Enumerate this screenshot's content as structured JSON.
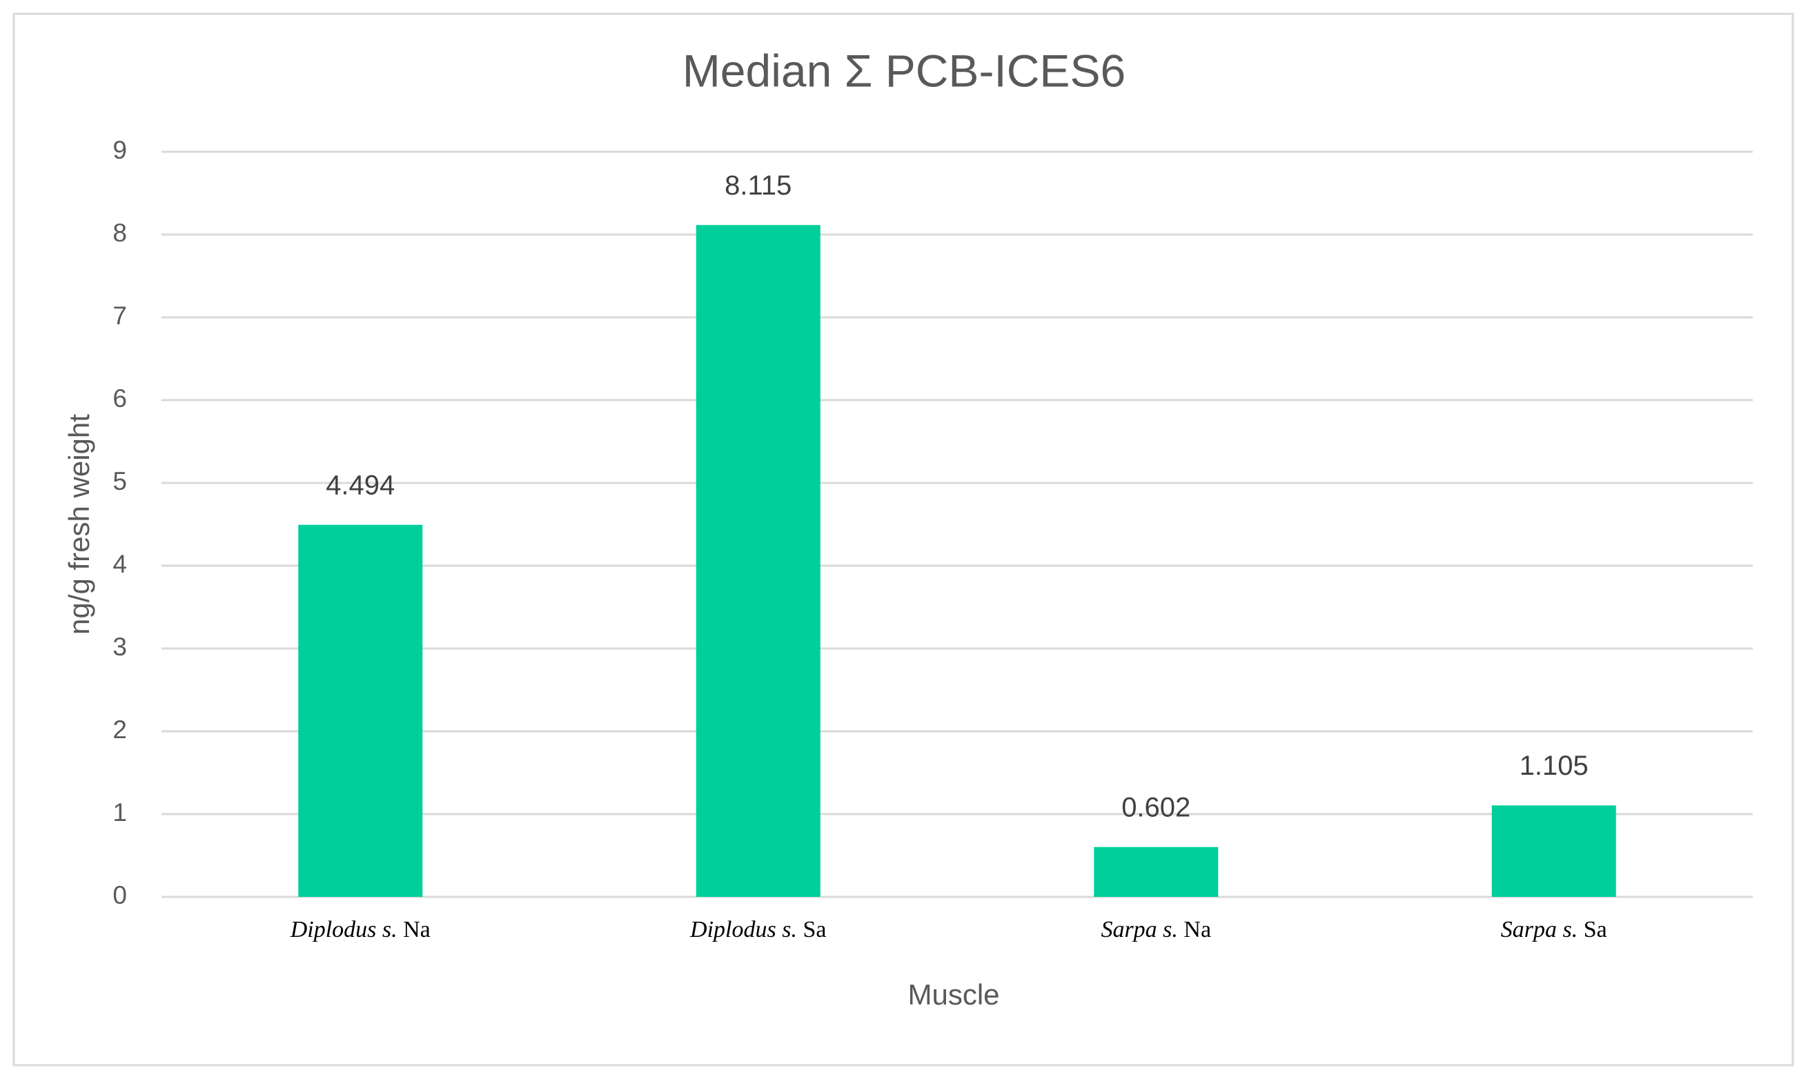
{
  "chart_data": {
    "type": "bar",
    "title": "Median Σ PCB-ICES6",
    "x_label": "Muscle",
    "y_label": "ng/g fresh weight",
    "categories": [
      "Diplodus s. Na",
      "Diplodus s. Sa",
      "Sarpa s. Na",
      "Sarpa s. Sa"
    ],
    "values": [
      4.494,
      8.115,
      0.602,
      1.105
    ],
    "color": "#00cf9b",
    "ylim": [
      0,
      9
    ],
    "yticks": [
      0,
      1,
      2,
      3,
      4,
      5,
      6,
      7,
      8,
      9
    ],
    "grid": true
  }
}
